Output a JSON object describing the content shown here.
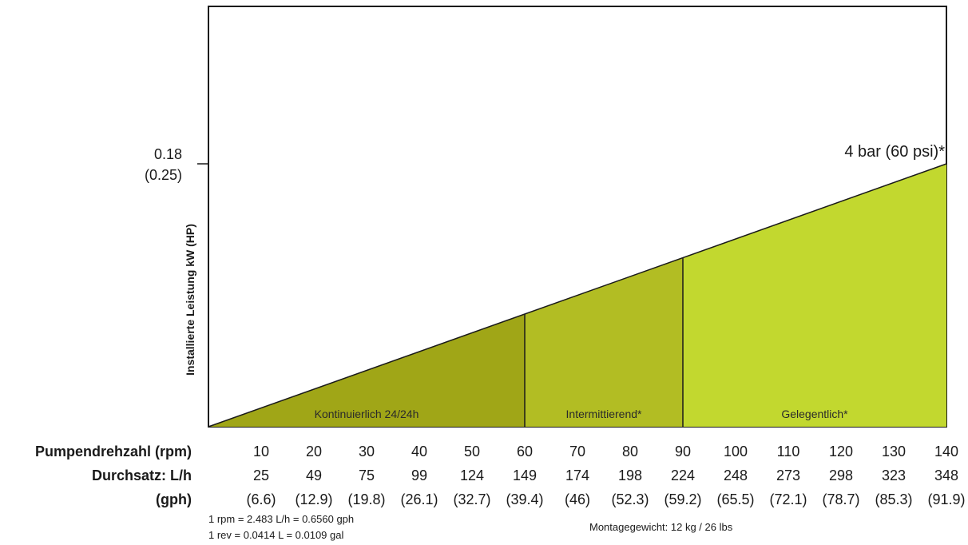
{
  "chart_data": {
    "type": "area",
    "ylabel": "Installierte Leistung kW (HP)",
    "y_ticks": [
      {
        "value": 0.18,
        "label": "0.18",
        "sublabel": "(0.25)"
      }
    ],
    "ylim": [
      0,
      0.18
    ],
    "xlim": [
      0,
      140
    ],
    "line": {
      "label": "4 bar (60 psi)*",
      "x": [
        0,
        140
      ],
      "y": [
        0,
        0.18
      ]
    },
    "regions": [
      {
        "name": "Kontinuierlich 24/24h",
        "x_start": 0,
        "x_end": 60,
        "color": "#a0a617"
      },
      {
        "name": "Intermittierend*",
        "x_start": 60,
        "x_end": 90,
        "color": "#b2bd23"
      },
      {
        "name": "Gelegentlich*",
        "x_start": 90,
        "x_end": 140,
        "color": "#c2d82f"
      }
    ],
    "rpm": [
      10,
      20,
      30,
      40,
      50,
      60,
      70,
      80,
      90,
      100,
      110,
      120,
      130,
      140
    ],
    "lph": [
      "25",
      "49",
      "75",
      "99",
      "124",
      "149",
      "174",
      "198",
      "224",
      "248",
      "273",
      "298",
      "323",
      "348"
    ],
    "gph": [
      "(6.6)",
      "(12.9)",
      "(19.8)",
      "(26.1)",
      "(32.7)",
      "(39.4)",
      "(46)",
      "(52.3)",
      "(59.2)",
      "(65.5)",
      "(72.1)",
      "(78.7)",
      "(85.3)",
      "(91.9)"
    ]
  },
  "rows": {
    "rpm_label": "Pumpendrehzahl (rpm)",
    "flow_label": "Durchsatz: L/h",
    "gph_label": "(gph)"
  },
  "notes": {
    "conversion_1": "1 rpm = 2.483 L/h = 0.6560 gph",
    "conversion_2": "1 rev = 0.0414 L = 0.0109 gal",
    "weight": "Montagegewicht: 12 kg / 26 lbs"
  }
}
